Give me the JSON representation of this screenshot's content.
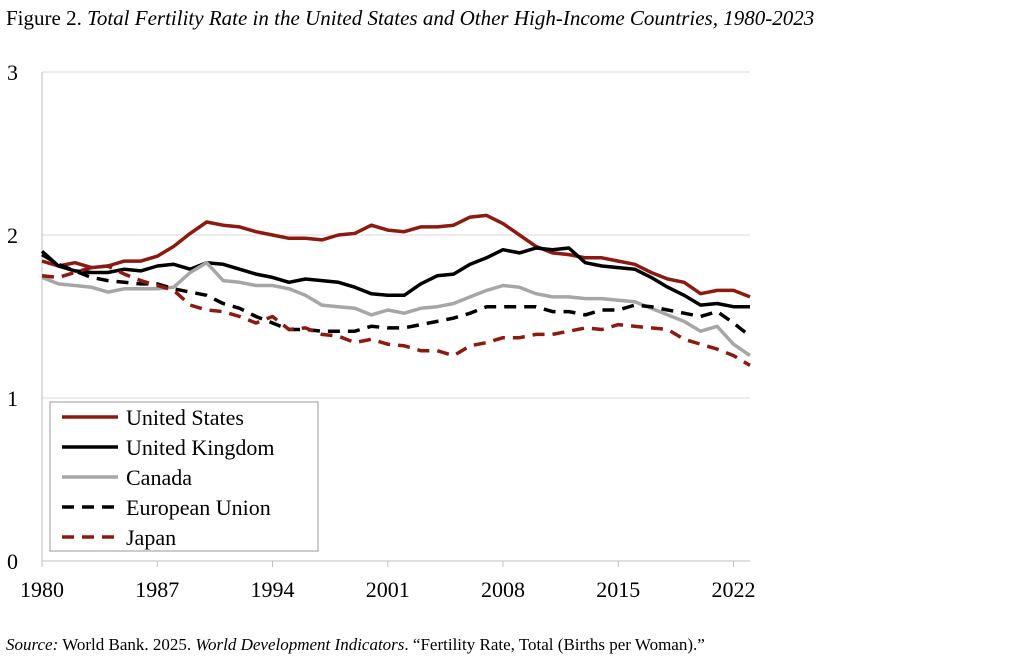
{
  "figure": {
    "label": "Figure 2.",
    "title_italic": "Total Fertility Rate in the United States and Other High-Income Countries, 1980-2023"
  },
  "source": {
    "label": "Source:",
    "part1": " World Bank. 2025. ",
    "publication": "World Development Indicators",
    "part2": ". “Fertility Rate, Total (Births per Woman).”"
  },
  "chart_data": {
    "type": "line",
    "title": "Total Fertility Rate in the United States and Other High-Income Countries, 1980-2023",
    "xlabel": "",
    "ylabel": "",
    "xlim": [
      1980,
      2023
    ],
    "ylim": [
      0,
      3
    ],
    "x_ticks": [
      1980,
      1987,
      1994,
      2001,
      2008,
      2015,
      2022
    ],
    "y_ticks": [
      0,
      1,
      2,
      3
    ],
    "grid": "horizontal",
    "legend_position": "bottom-left",
    "x": [
      1980,
      1981,
      1982,
      1983,
      1984,
      1985,
      1986,
      1987,
      1988,
      1989,
      1990,
      1991,
      1992,
      1993,
      1994,
      1995,
      1996,
      1997,
      1998,
      1999,
      2000,
      2001,
      2002,
      2003,
      2004,
      2005,
      2006,
      2007,
      2008,
      2009,
      2010,
      2011,
      2012,
      2013,
      2014,
      2015,
      2016,
      2017,
      2018,
      2019,
      2020,
      2021,
      2022,
      2023
    ],
    "series": [
      {
        "name": "United States",
        "color": "#8b1a10",
        "dash": "solid",
        "values": [
          1.84,
          1.81,
          1.83,
          1.8,
          1.81,
          1.84,
          1.84,
          1.87,
          1.93,
          2.01,
          2.08,
          2.06,
          2.05,
          2.02,
          2.0,
          1.98,
          1.98,
          1.97,
          2.0,
          2.01,
          2.06,
          2.03,
          2.02,
          2.05,
          2.05,
          2.06,
          2.11,
          2.12,
          2.07,
          2.0,
          1.93,
          1.89,
          1.88,
          1.86,
          1.86,
          1.84,
          1.82,
          1.77,
          1.73,
          1.71,
          1.64,
          1.66,
          1.66,
          1.62
        ]
      },
      {
        "name": "United Kingdom",
        "color": "#000000",
        "dash": "solid",
        "values": [
          1.9,
          1.81,
          1.78,
          1.77,
          1.77,
          1.79,
          1.78,
          1.81,
          1.82,
          1.79,
          1.83,
          1.82,
          1.79,
          1.76,
          1.74,
          1.71,
          1.73,
          1.72,
          1.71,
          1.68,
          1.64,
          1.63,
          1.63,
          1.7,
          1.75,
          1.76,
          1.82,
          1.86,
          1.91,
          1.89,
          1.92,
          1.91,
          1.92,
          1.83,
          1.81,
          1.8,
          1.79,
          1.74,
          1.68,
          1.63,
          1.57,
          1.58,
          1.56,
          1.56
        ]
      },
      {
        "name": "Canada",
        "color": "#a6a6a6",
        "dash": "solid",
        "values": [
          1.74,
          1.7,
          1.69,
          1.68,
          1.65,
          1.67,
          1.67,
          1.67,
          1.68,
          1.77,
          1.83,
          1.72,
          1.71,
          1.69,
          1.69,
          1.67,
          1.63,
          1.57,
          1.56,
          1.55,
          1.51,
          1.54,
          1.52,
          1.55,
          1.56,
          1.58,
          1.62,
          1.66,
          1.69,
          1.68,
          1.64,
          1.62,
          1.62,
          1.61,
          1.61,
          1.6,
          1.59,
          1.55,
          1.51,
          1.47,
          1.41,
          1.44,
          1.33,
          1.26
        ]
      },
      {
        "name": "European Union",
        "color": "#000000",
        "dash": "dashed",
        "values": [
          1.88,
          1.82,
          1.78,
          1.74,
          1.72,
          1.71,
          1.7,
          1.7,
          1.67,
          1.65,
          1.63,
          1.58,
          1.55,
          1.5,
          1.46,
          1.42,
          1.42,
          1.41,
          1.41,
          1.41,
          1.44,
          1.43,
          1.43,
          1.45,
          1.47,
          1.49,
          1.52,
          1.56,
          1.56,
          1.56,
          1.56,
          1.53,
          1.53,
          1.51,
          1.54,
          1.54,
          1.57,
          1.56,
          1.54,
          1.52,
          1.5,
          1.53,
          1.46,
          1.38
        ]
      },
      {
        "name": "Japan",
        "color": "#8b1a10",
        "dash": "dashed",
        "values": [
          1.75,
          1.74,
          1.77,
          1.8,
          1.81,
          1.76,
          1.72,
          1.69,
          1.66,
          1.57,
          1.54,
          1.53,
          1.5,
          1.46,
          1.5,
          1.42,
          1.43,
          1.39,
          1.38,
          1.34,
          1.36,
          1.33,
          1.32,
          1.29,
          1.29,
          1.26,
          1.32,
          1.34,
          1.37,
          1.37,
          1.39,
          1.39,
          1.41,
          1.43,
          1.42,
          1.45,
          1.44,
          1.43,
          1.42,
          1.36,
          1.33,
          1.3,
          1.26,
          1.2
        ]
      }
    ]
  }
}
